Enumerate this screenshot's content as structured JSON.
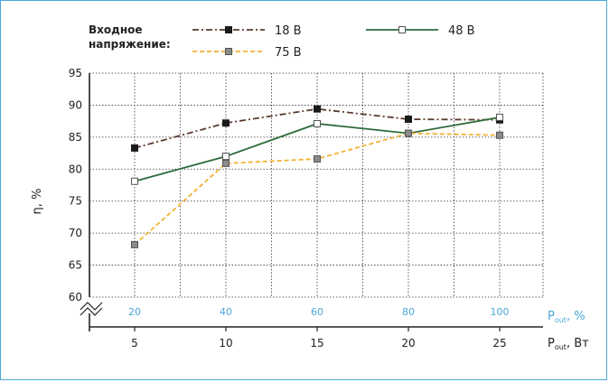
{
  "chart_data": {
    "type": "line",
    "legend_title_line1": "Входное",
    "legend_title_line2": "напряжение:",
    "ylabel": "η, %",
    "ylim": [
      60,
      95
    ],
    "yticks": [
      60,
      65,
      70,
      75,
      80,
      85,
      90,
      95
    ],
    "x": [
      5,
      10,
      15,
      20,
      25
    ],
    "x_tick_labels": [
      "5",
      "10",
      "15",
      "20",
      "25"
    ],
    "x_secondary_tick_labels": [
      "20",
      "40",
      "60",
      "80",
      "100"
    ],
    "xlabel_main": "P",
    "xlabel_sub": "out",
    "xlabel_unit": ", Вт",
    "xlabel_secondary_main": "P",
    "xlabel_secondary_sub": "out",
    "xlabel_secondary_unit": ", %",
    "grid": true,
    "legend_position": "top",
    "series": [
      {
        "name": "18 В",
        "values": [
          83.3,
          87.2,
          89.4,
          87.8,
          87.7
        ],
        "color": "#5c3a2e",
        "dash": "dash-dot",
        "marker": "filled-square"
      },
      {
        "name": "48 В",
        "values": [
          78.1,
          82.0,
          87.1,
          85.6,
          88.1
        ],
        "color": "#2e6b3a",
        "dash": "solid",
        "marker": "hollow-square"
      },
      {
        "name": "75 В",
        "values": [
          68.2,
          80.9,
          81.6,
          85.6,
          85.3
        ],
        "color": "#f2b233",
        "dash": "dashed",
        "marker": "gray-square"
      }
    ],
    "colors": {
      "axis": "#222222",
      "grid": "#333333",
      "secondary_axis": "#4aa8d8"
    }
  }
}
